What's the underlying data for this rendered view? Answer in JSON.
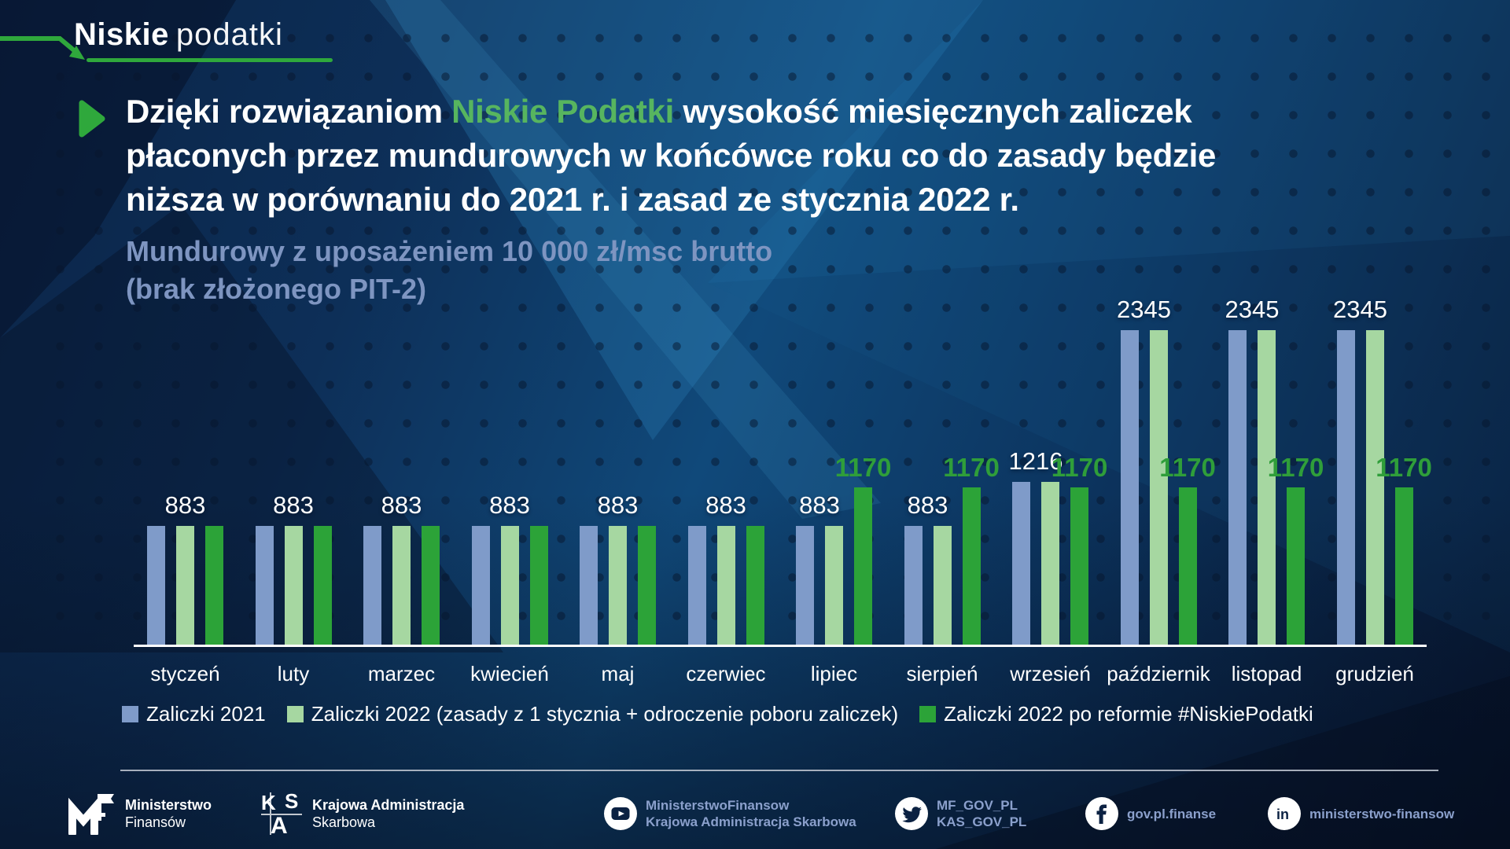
{
  "logo": {
    "bold": "Niskie",
    "light": "podatki"
  },
  "headline": {
    "line1_prefix": "Dzięki rozwiązaniom ",
    "line1_highlight": "Niskie Podatki",
    "line1_suffix": " wysokość miesięcznych zaliczek",
    "line2": "płaconych przez mundurowych w końcówce roku co do zasady będzie",
    "line3": "niższa w porównaniu do 2021 r. i zasad ze stycznia 2022 r."
  },
  "subtitle": {
    "line1": "Mundurowy z uposażeniem 10 000 zł/msc brutto",
    "line2": "(brak złożonego PIT-2)"
  },
  "chart_data": {
    "type": "bar",
    "categories": [
      "styczeń",
      "luty",
      "marzec",
      "kwiecień",
      "maj",
      "czerwiec",
      "lipiec",
      "sierpień",
      "wrzesień",
      "październik",
      "listopad",
      "grudzień"
    ],
    "series": [
      {
        "name": "Zaliczki 2021",
        "color": "#7F9BC9",
        "values": [
          883,
          883,
          883,
          883,
          883,
          883,
          883,
          883,
          1216,
          2345,
          2345,
          2345
        ]
      },
      {
        "name": "Zaliczki 2022 (zasady z 1 stycznia + odroczenie poboru zaliczek)",
        "color": "#A6D7A1",
        "values": [
          883,
          883,
          883,
          883,
          883,
          883,
          883,
          883,
          1216,
          2345,
          2345,
          2345
        ]
      },
      {
        "name": "Zaliczki 2022 po reformie #NiskiePodatki",
        "color": "#2CA338",
        "values": [
          883,
          883,
          883,
          883,
          883,
          883,
          1170,
          1170,
          1170,
          1170,
          1170,
          1170
        ]
      }
    ],
    "ylim": [
      0,
      2345
    ],
    "grid": false,
    "legend_position": "bottom",
    "value_label_colors": {
      "shared": "#FFFFFF",
      "reform": "#2F9E3A"
    }
  },
  "footer": {
    "items": [
      {
        "icon": "mf-logo",
        "style": "white",
        "lines": [
          "Ministerstwo",
          "Finansów"
        ]
      },
      {
        "icon": "kas-logo",
        "style": "white",
        "lines": [
          "Krajowa Administracja",
          "Skarbowa"
        ]
      },
      {
        "icon": "youtube",
        "style": "blue",
        "lines": [
          "MinisterstwoFinansow",
          "Krajowa Administracja Skarbowa"
        ]
      },
      {
        "icon": "twitter",
        "style": "blue",
        "lines": [
          "MF_GOV_PL",
          "KAS_GOV_PL"
        ]
      },
      {
        "icon": "facebook",
        "style": "blue",
        "lines": [
          "gov.pl.finanse"
        ]
      },
      {
        "icon": "linkedin",
        "style": "blue",
        "lines": [
          "ministerstwo-finansow"
        ]
      }
    ]
  },
  "colors": {
    "accent_green": "#2FA83C",
    "headline_green": "#57B55F",
    "value_green": "#2F9E3A",
    "subtitle_blue": "#7E95C1",
    "social_blue": "#8BA0CC",
    "bar_blue": "#7F9BC9",
    "bar_light_green": "#A6D7A1",
    "bar_green": "#2CA338",
    "axis_white": "#FFFFFF"
  }
}
